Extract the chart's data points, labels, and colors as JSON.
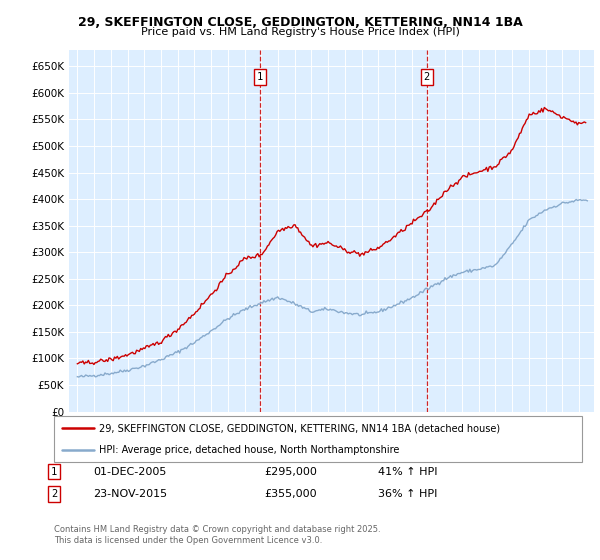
{
  "title1": "29, SKEFFINGTON CLOSE, GEDDINGTON, KETTERING, NN14 1BA",
  "title2": "Price paid vs. HM Land Registry's House Price Index (HPI)",
  "ylabel_ticks": [
    "£0",
    "£50K",
    "£100K",
    "£150K",
    "£200K",
    "£250K",
    "£300K",
    "£350K",
    "£400K",
    "£450K",
    "£500K",
    "£550K",
    "£600K",
    "£650K"
  ],
  "ytick_vals": [
    0,
    50000,
    100000,
    150000,
    200000,
    250000,
    300000,
    350000,
    400000,
    450000,
    500000,
    550000,
    600000,
    650000
  ],
  "xlim_start": 1994.5,
  "xlim_end": 2025.9,
  "ylim_min": 0,
  "ylim_max": 680000,
  "sale1_x": 2005.917,
  "sale1_label": "1",
  "sale1_date": "01-DEC-2005",
  "sale1_price": "£295,000",
  "sale1_hpi": "41% ↑ HPI",
  "sale2_x": 2015.9,
  "sale2_label": "2",
  "sale2_date": "23-NOV-2015",
  "sale2_price": "£355,000",
  "sale2_hpi": "36% ↑ HPI",
  "line_color_red": "#cc0000",
  "line_color_blue": "#88aacc",
  "bg_color": "#ddeeff",
  "grid_color": "#ffffff",
  "legend_label_red": "29, SKEFFINGTON CLOSE, GEDDINGTON, KETTERING, NN14 1BA (detached house)",
  "legend_label_blue": "HPI: Average price, detached house, North Northamptonshire",
  "footnote": "Contains HM Land Registry data © Crown copyright and database right 2025.\nThis data is licensed under the Open Government Licence v3.0.",
  "marker_box_color": "#cc0000"
}
